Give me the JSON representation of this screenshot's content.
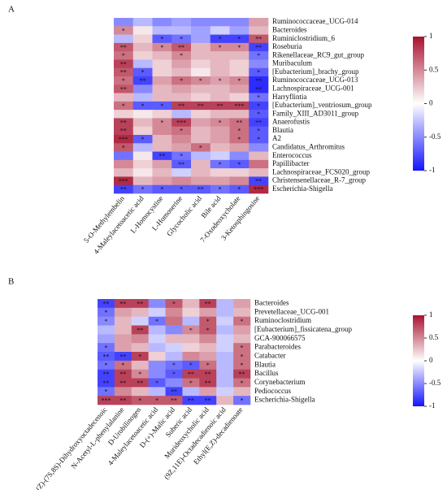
{
  "chart_data": [
    {
      "type": "heatmap",
      "panel_label": "A",
      "rows": [
        "Ruminococcaceae_UCG-014",
        "Bacteroides",
        "Ruminiclostridium_6",
        "Roseburia",
        "Rikenellaceae_RC9_gut_group",
        "Muribaculum",
        "[Eubacterium]_brachy_group",
        "Ruminococcaceae_UCG-013",
        "Lachnospiraceae_UCG-001",
        "Harryflintia",
        "[Eubacterium]_ventriosum_group",
        "Family_XIII_AD3011_group",
        "Anaerofustis",
        "Blautia",
        "A2",
        "Candidatus_Arthromitus",
        "Enterococcus",
        "Papillibacter",
        "Lachnospiraceae_FCS020_group",
        "Christensenellaceae_R-7_group",
        "Escherichia-Shigella"
      ],
      "columns": [
        "5-O-Methylembelin",
        "4-Maleylacetoacetic acid",
        "L-Homocystine",
        "L-Homoserine",
        "Glycocholic acid",
        "Bile acid",
        "7-Oxodeoxycholate",
        "3-Ketosphingosine"
      ],
      "values": [
        [
          -0.5,
          -0.3,
          -0.5,
          -0.4,
          -0.5,
          -0.5,
          -0.5,
          0.4
        ],
        [
          0.5,
          0.1,
          -0.3,
          -0.3,
          -0.4,
          -0.2,
          -0.4,
          0.3
        ],
        [
          -0.3,
          0.2,
          -0.7,
          -0.6,
          -0.4,
          -0.8,
          -0.8,
          0.7
        ],
        [
          0.7,
          0.3,
          0.5,
          0.7,
          0.3,
          0.5,
          0.5,
          -0.8
        ],
        [
          0.6,
          0.2,
          0.3,
          0.5,
          0.3,
          0.3,
          0.3,
          -0.6
        ],
        [
          0.8,
          -0.3,
          0.2,
          0.4,
          0.2,
          0.3,
          0.2,
          -0.5
        ],
        [
          0.7,
          -0.7,
          0.2,
          0.3,
          0.1,
          0.3,
          0.2,
          -0.7
        ],
        [
          0.6,
          -0.8,
          0.4,
          0.6,
          0.5,
          0.4,
          0.5,
          -0.9
        ],
        [
          0.7,
          -0.5,
          0.3,
          0.4,
          0.3,
          0.3,
          0.4,
          -0.9
        ],
        [
          0.3,
          -0.3,
          0.3,
          0.3,
          0.2,
          0.3,
          0.2,
          -0.6
        ],
        [
          0.6,
          -0.7,
          -0.7,
          0.8,
          0.8,
          0.8,
          0.8,
          -0.8
        ],
        [
          0.2,
          0.1,
          0.2,
          -0.3,
          0.2,
          0.3,
          0.3,
          -0.7
        ],
        [
          0.8,
          0.3,
          0.5,
          0.8,
          0.4,
          0.5,
          0.6,
          -0.8
        ],
        [
          0.8,
          0.2,
          0.5,
          0.6,
          0.3,
          0.4,
          0.6,
          -0.7
        ],
        [
          0.9,
          -0.7,
          0.3,
          0.5,
          0.3,
          0.4,
          0.6,
          -0.7
        ],
        [
          0.7,
          -0.3,
          0.3,
          0.4,
          0.6,
          0.3,
          0.4,
          -0.5
        ],
        [
          -0.6,
          0.1,
          -0.8,
          -0.6,
          -0.3,
          -0.2,
          -0.5,
          0.3
        ],
        [
          0.5,
          0.2,
          0.4,
          -0.7,
          0.3,
          -0.6,
          -0.7,
          0.6
        ],
        [
          0.3,
          0.1,
          0.3,
          -0.2,
          0.3,
          0.2,
          0.2,
          0.3
        ],
        [
          0.9,
          0.3,
          0.4,
          0.5,
          0.4,
          0.4,
          0.5,
          -0.8
        ],
        [
          -0.8,
          -0.6,
          -0.7,
          -0.7,
          -0.7,
          -0.6,
          -0.7,
          0.9
        ]
      ],
      "stars": [
        [
          null,
          null,
          null,
          null,
          null,
          null,
          null,
          null
        ],
        [
          "*",
          null,
          null,
          null,
          null,
          null,
          null,
          null
        ],
        [
          null,
          null,
          "*",
          "*",
          null,
          "*",
          "*",
          "**"
        ],
        [
          "**",
          null,
          "*",
          "**",
          null,
          "*",
          "*",
          "**"
        ],
        [
          "*",
          null,
          null,
          "*",
          null,
          null,
          null,
          "*"
        ],
        [
          "**",
          null,
          null,
          null,
          null,
          null,
          null,
          null
        ],
        [
          "**",
          "*",
          null,
          null,
          null,
          null,
          null,
          "*"
        ],
        [
          "*",
          "**",
          null,
          "*",
          "*",
          "*",
          "*",
          "**"
        ],
        [
          "**",
          null,
          null,
          null,
          null,
          null,
          null,
          "**"
        ],
        [
          null,
          null,
          null,
          null,
          null,
          null,
          null,
          "*"
        ],
        [
          "*",
          "*",
          "*",
          "**",
          "**",
          "**",
          "***",
          "*"
        ],
        [
          null,
          null,
          null,
          null,
          null,
          null,
          null,
          "*"
        ],
        [
          "**",
          null,
          "*",
          "***",
          null,
          "*",
          "**",
          "**"
        ],
        [
          "**",
          null,
          null,
          "*",
          null,
          null,
          "*",
          "*"
        ],
        [
          "***",
          "*",
          null,
          null,
          null,
          null,
          "*",
          "*"
        ],
        [
          "*",
          null,
          null,
          null,
          "*",
          null,
          null,
          null
        ],
        [
          null,
          null,
          "**",
          "*",
          null,
          null,
          null,
          null
        ],
        [
          null,
          null,
          null,
          "**",
          null,
          "*",
          "*",
          null
        ],
        [
          null,
          null,
          null,
          null,
          null,
          null,
          null,
          null
        ],
        [
          "***",
          null,
          null,
          null,
          null,
          null,
          null,
          "**"
        ],
        [
          "**",
          "*",
          "*",
          "*",
          "**",
          "*",
          "*",
          "***"
        ]
      ],
      "colorbar_lim": [
        -1,
        1
      ],
      "colorbar_ticks": [
        1,
        0.5,
        0,
        -0.5,
        -1
      ],
      "colormap": [
        "#1414ff",
        "#ffffff",
        "#a8122f"
      ]
    },
    {
      "type": "heatmap",
      "panel_label": "B",
      "rows": [
        "Bacteroides",
        "Prevetellaceae_UCG-001",
        "Ruminoclostridium",
        "[Eubacterium]_fissicatena_group",
        "GCA-900066575",
        "Parabacteroides",
        "Catabacter",
        "Blautia",
        "Bacillus",
        "Corynebacterium",
        "Pediococcus",
        "Escherichia-Shigella"
      ],
      "columns": [
        "(Z)-(7S,8S)-Dihydroxyoctadecenoic",
        "N-Acetyl-L-phenylalanine",
        "D-Urobilinogen",
        "4-Maleylacetoacetic acid",
        "D-(+)-Malic acid",
        "Suberic acid",
        "Murideoxycholic acid",
        "(9Z,11E)-Octadecadienoic acid",
        "Ethyl(E,Z)-decadienoate"
      ],
      "values": [
        [
          -0.8,
          0.8,
          0.8,
          -0.5,
          0.7,
          0.3,
          0.8,
          -0.3,
          0.4
        ],
        [
          -0.6,
          0.4,
          0.3,
          -0.2,
          0.5,
          0.2,
          0.4,
          -0.3,
          0.3
        ],
        [
          -0.5,
          0.3,
          -0.2,
          -0.6,
          0.6,
          -0.3,
          0.7,
          -0.2,
          0.6
        ],
        [
          -0.3,
          0.3,
          0.8,
          -0.3,
          -0.5,
          0.5,
          0.7,
          -0.3,
          0.4
        ],
        [
          -0.4,
          0.4,
          0.5,
          -0.2,
          0.3,
          0.3,
          0.5,
          -0.2,
          0.3
        ],
        [
          -0.6,
          0.4,
          0.3,
          -0.3,
          -0.2,
          0.2,
          0.3,
          -0.2,
          0.6
        ],
        [
          -0.7,
          -0.8,
          0.8,
          0.2,
          -0.3,
          0.5,
          0.4,
          -0.3,
          0.6
        ],
        [
          -0.6,
          0.6,
          0.3,
          -0.5,
          -0.6,
          -0.7,
          0.6,
          -0.3,
          0.6
        ],
        [
          -0.8,
          0.8,
          0.5,
          -0.5,
          -0.7,
          0.8,
          0.8,
          -0.3,
          0.8
        ],
        [
          -0.8,
          0.8,
          0.8,
          -0.7,
          -0.5,
          0.6,
          0.8,
          -0.3,
          0.6
        ],
        [
          -0.6,
          0.5,
          0.3,
          -0.3,
          -0.8,
          -0.3,
          0.4,
          -0.2,
          0.3
        ],
        [
          0.8,
          0.8,
          0.7,
          0.7,
          0.7,
          -0.8,
          -0.8,
          0.3,
          -0.6
        ]
      ],
      "stars": [
        [
          "**",
          "**",
          "**",
          null,
          "*",
          null,
          "**",
          null,
          null
        ],
        [
          "*",
          null,
          null,
          null,
          null,
          null,
          null,
          null,
          null
        ],
        [
          "*",
          null,
          null,
          "*",
          null,
          null,
          "*",
          null,
          "*"
        ],
        [
          null,
          null,
          "**",
          null,
          null,
          "*",
          "*",
          null,
          null
        ],
        [
          null,
          null,
          null,
          null,
          null,
          null,
          null,
          null,
          null
        ],
        [
          "*",
          null,
          null,
          null,
          null,
          null,
          null,
          null,
          "*"
        ],
        [
          "**",
          "**",
          "*",
          null,
          null,
          null,
          null,
          null,
          "*"
        ],
        [
          "*",
          "*",
          null,
          null,
          "*",
          "*",
          "*",
          null,
          "*"
        ],
        [
          "**",
          "**",
          "*",
          null,
          "*",
          "**",
          "**",
          null,
          "**"
        ],
        [
          "**",
          "**",
          "**",
          "*",
          null,
          "*",
          "**",
          null,
          "*"
        ],
        [
          "*",
          null,
          null,
          null,
          "**",
          null,
          null,
          null,
          null
        ],
        [
          "***",
          "**",
          "*",
          "*",
          "**",
          "**",
          "**",
          null,
          "*"
        ]
      ],
      "colorbar_lim": [
        -1,
        1
      ],
      "colorbar_ticks": [
        1,
        0.5,
        0,
        -0.5,
        -1
      ],
      "colormap": [
        "#1414ff",
        "#ffffff",
        "#a8122f"
      ]
    }
  ]
}
